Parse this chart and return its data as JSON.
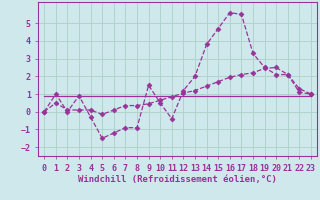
{
  "xlabel": "Windchill (Refroidissement éolien,°C)",
  "bg_color": "#cfe8ec",
  "grid_color": "#b0d4cc",
  "line_color": "#993399",
  "xlim": [
    -0.5,
    23.5
  ],
  "ylim": [
    -2.5,
    6.2
  ],
  "yticks": [
    -2,
    -1,
    0,
    1,
    2,
    3,
    4,
    5
  ],
  "xticks": [
    0,
    1,
    2,
    3,
    4,
    5,
    6,
    7,
    8,
    9,
    10,
    11,
    12,
    13,
    14,
    15,
    16,
    17,
    18,
    19,
    20,
    21,
    22,
    23
  ],
  "series1_x": [
    0,
    1,
    2,
    3,
    4,
    5,
    6,
    7,
    8,
    9,
    10,
    11,
    12,
    13,
    14,
    15,
    16,
    17,
    18,
    19,
    20,
    21,
    22,
    23
  ],
  "series1_y": [
    0.0,
    1.0,
    0.0,
    0.9,
    -0.3,
    -1.5,
    -1.2,
    -0.9,
    -0.9,
    1.5,
    0.5,
    -0.4,
    1.2,
    2.0,
    3.8,
    4.7,
    5.6,
    5.5,
    3.3,
    2.5,
    2.1,
    2.1,
    1.1,
    1.0
  ],
  "series2_x": [
    0,
    1,
    2,
    3,
    4,
    5,
    6,
    7,
    8,
    9,
    10,
    11,
    12,
    13,
    14,
    15,
    16,
    17,
    18,
    19,
    20,
    21,
    22,
    23
  ],
  "series2_y": [
    0.0,
    0.5,
    0.1,
    0.1,
    0.1,
    -0.15,
    0.1,
    0.35,
    0.35,
    0.45,
    0.65,
    0.85,
    1.05,
    1.2,
    1.45,
    1.7,
    1.95,
    2.1,
    2.2,
    2.45,
    2.5,
    2.1,
    1.3,
    1.0
  ],
  "series3_x": [
    0,
    23
  ],
  "series3_y": [
    0.9,
    0.9
  ],
  "font_family": "monospace",
  "xlabel_fontsize": 6.5,
  "tick_fontsize": 6
}
